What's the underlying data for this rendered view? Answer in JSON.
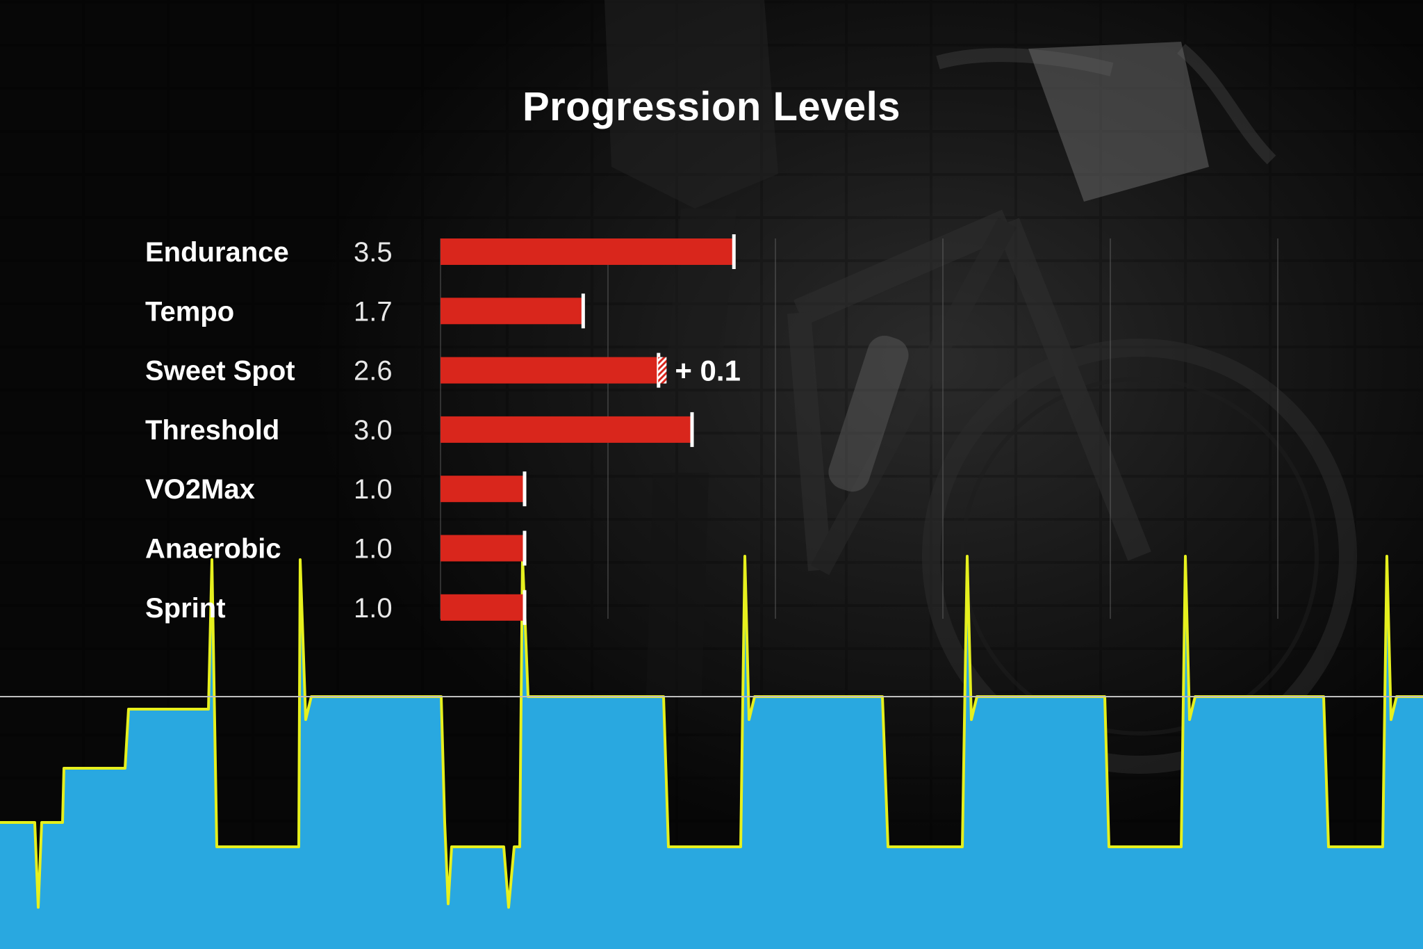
{
  "chart_data": [
    {
      "type": "bar",
      "title": "Progression Levels",
      "orientation": "horizontal",
      "categories": [
        "Endurance",
        "Tempo",
        "Sweet Spot",
        "Threshold",
        "VO2Max",
        "Anaerobic",
        "Sprint"
      ],
      "values": [
        3.5,
        1.7,
        2.6,
        3.0,
        1.0,
        1.0,
        1.0
      ],
      "value_labels": [
        "3.5",
        "1.7",
        "2.6",
        "3.0",
        "1.0",
        "1.0",
        "1.0"
      ],
      "annotations": [
        {
          "category": "Sweet Spot",
          "text": "+ 0.1",
          "delta": 0.1
        }
      ],
      "xlim": [
        0,
        10
      ],
      "grid": true,
      "bar_color": "#d9261c"
    },
    {
      "type": "area",
      "description_series": "power profile",
      "x": [
        0,
        50,
        55,
        60,
        90,
        95,
        180,
        185,
        300,
        305,
        315,
        320,
        430,
        435,
        440,
        445,
        640,
        645,
        650,
        655,
        760,
        765,
        1075,
        1080,
        1090,
        1095,
        1395,
        1400,
        1410,
        1415,
        1710,
        1715,
        1730,
        1735,
        2048
      ],
      "colors": {
        "area_fill": "#29a8e0",
        "line_stroke": "#e6f01e",
        "threshold_line": "#bfbfbf"
      }
    }
  ]
}
